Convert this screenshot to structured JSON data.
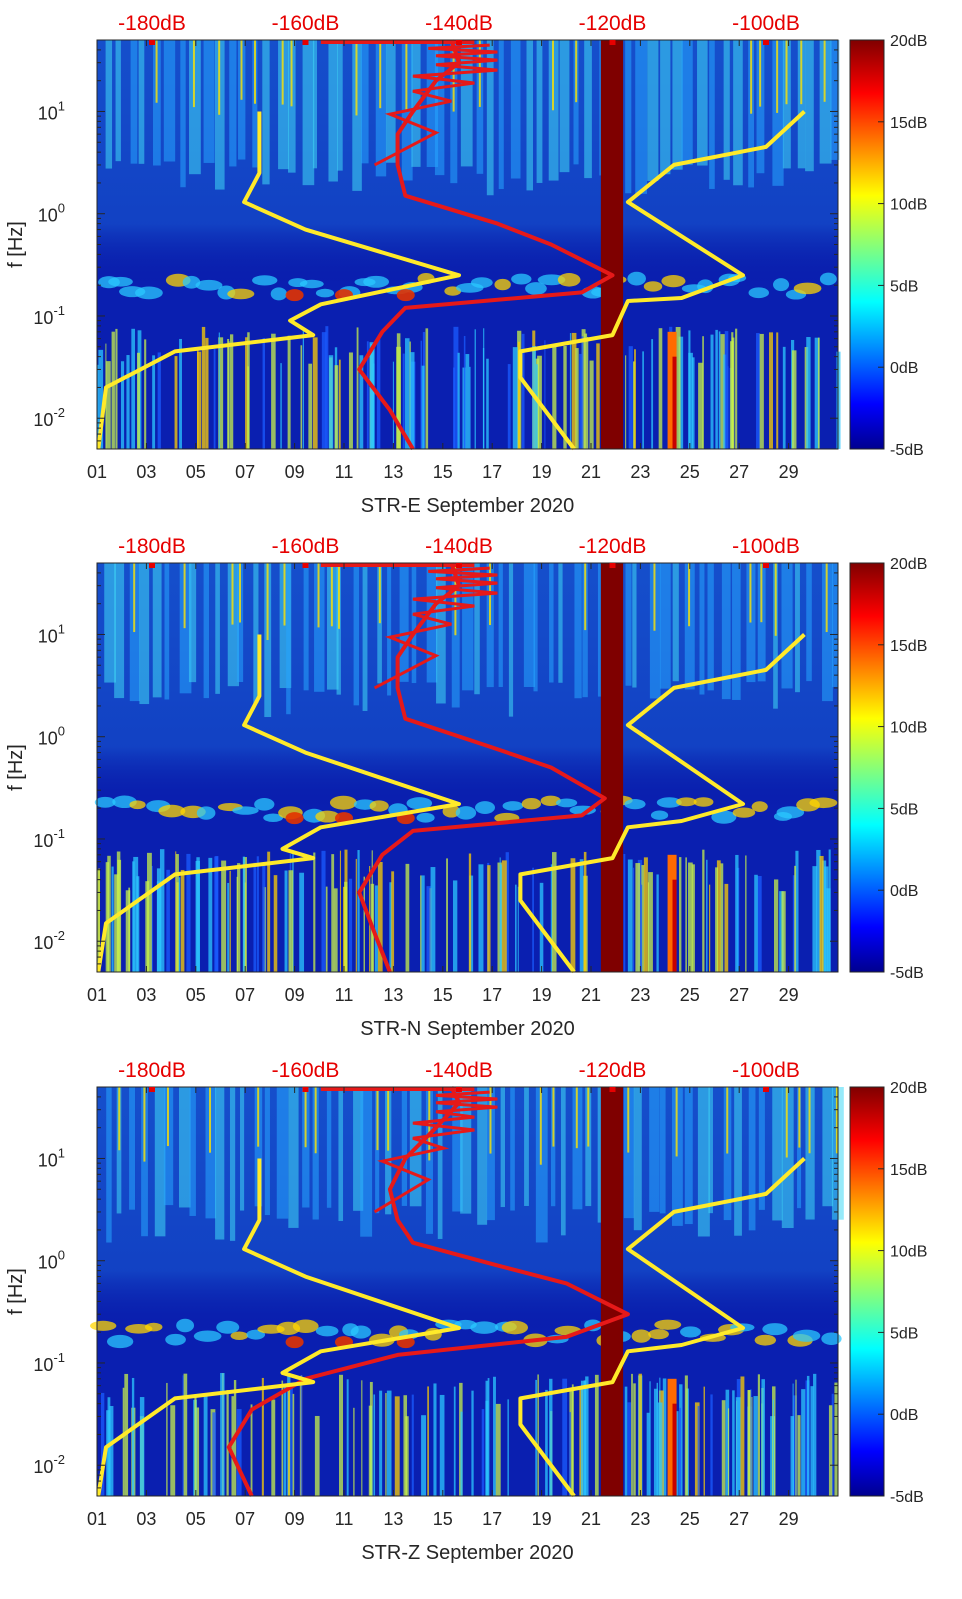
{
  "colors": {
    "axis": "#262626",
    "top_labels": "#e60000",
    "noise_curve": "#e61919",
    "model_curve": "#ffea2a",
    "block": "#7f0000"
  },
  "chart_data": [
    {
      "type": "heatmap",
      "title": "",
      "xlabel": "STR-E September 2020",
      "ylabel": "f [Hz]",
      "x_ticks": [
        "01",
        "03",
        "05",
        "07",
        "09",
        "11",
        "13",
        "15",
        "17",
        "19",
        "21",
        "23",
        "25",
        "27",
        "29"
      ],
      "x_days": [
        1,
        3,
        5,
        7,
        9,
        11,
        13,
        15,
        17,
        19,
        21,
        23,
        25,
        27,
        29
      ],
      "xlim": [
        1,
        31
      ],
      "yscale": "log",
      "ylim": [
        0.005,
        50
      ],
      "y_ticks": [
        {
          "base": "10",
          "exp": "-2",
          "value": 0.01
        },
        {
          "base": "10",
          "exp": "-1",
          "value": 0.1
        },
        {
          "base": "10",
          "exp": "0",
          "value": 1
        },
        {
          "base": "10",
          "exp": "1",
          "value": 10
        }
      ],
      "top_axis_labels": [
        "-180dB",
        "-160dB",
        "-140dB",
        "-120dB",
        "-100dB"
      ],
      "top_axis_values": [
        -180,
        -160,
        -140,
        -120,
        -100
      ],
      "colorbar_labels": [
        "20dB",
        "15dB",
        "10dB",
        "5dB",
        "0dB",
        "-5dB"
      ],
      "colorbar_range": [
        -5,
        20
      ],
      "highlight_band_days": [
        21.4,
        22.3
      ],
      "series": [
        {
          "name": "noise level (top axis)",
          "color": "red",
          "points": [
            [
              -141,
              50
            ],
            [
              -140,
              30
            ],
            [
              -143,
              20
            ],
            [
              -146,
              10
            ],
            [
              -148,
              6
            ],
            [
              -148,
              3
            ],
            [
              -147,
              1.5
            ],
            [
              -135,
              0.8
            ],
            [
              -128,
              0.5
            ],
            [
              -120,
              0.25
            ],
            [
              -124,
              0.17
            ],
            [
              -147,
              0.12
            ],
            [
              -150,
              0.07
            ],
            [
              -153,
              0.03
            ],
            [
              -149,
              0.012
            ],
            [
              -146,
              0.005
            ]
          ]
        },
        {
          "name": "model (top axis)",
          "color": "yellow",
          "points": [
            [
              -166,
              10
            ],
            [
              -166,
              2.5
            ],
            [
              -168,
              1.3
            ],
            [
              -160,
              0.7
            ],
            [
              -140,
              0.25
            ],
            [
              -158,
              0.13
            ],
            [
              -162,
              0.09
            ],
            [
              -159,
              0.065
            ],
            [
              -177,
              0.045
            ],
            [
              -186,
              0.02
            ],
            [
              -187,
              0.005
            ]
          ]
        },
        {
          "name": "model high (top axis)",
          "color": "yellow",
          "points": [
            [
              -95,
              10
            ],
            [
              -100,
              4.5
            ],
            [
              -112,
              3
            ],
            [
              -118,
              1.3
            ],
            [
              -103,
              0.25
            ],
            [
              -111,
              0.15
            ],
            [
              -118,
              0.14
            ],
            [
              -120,
              0.065
            ],
            [
              -132,
              0.045
            ],
            [
              -132,
              0.025
            ],
            [
              -125,
              0.005
            ]
          ]
        }
      ]
    },
    {
      "type": "heatmap",
      "title": "",
      "xlabel": "STR-N September 2020",
      "ylabel": "f [Hz]",
      "x_ticks": [
        "01",
        "03",
        "05",
        "07",
        "09",
        "11",
        "13",
        "15",
        "17",
        "19",
        "21",
        "23",
        "25",
        "27",
        "29"
      ],
      "x_days": [
        1,
        3,
        5,
        7,
        9,
        11,
        13,
        15,
        17,
        19,
        21,
        23,
        25,
        27,
        29
      ],
      "xlim": [
        1,
        31
      ],
      "yscale": "log",
      "ylim": [
        0.005,
        50
      ],
      "y_ticks": [
        {
          "base": "10",
          "exp": "-2",
          "value": 0.01
        },
        {
          "base": "10",
          "exp": "-1",
          "value": 0.1
        },
        {
          "base": "10",
          "exp": "0",
          "value": 1
        },
        {
          "base": "10",
          "exp": "1",
          "value": 10
        }
      ],
      "top_axis_labels": [
        "-180dB",
        "-160dB",
        "-140dB",
        "-120dB",
        "-100dB"
      ],
      "top_axis_values": [
        -180,
        -160,
        -140,
        -120,
        -100
      ],
      "colorbar_labels": [
        "20dB",
        "15dB",
        "10dB",
        "5dB",
        "0dB",
        "-5dB"
      ],
      "colorbar_range": [
        -5,
        20
      ],
      "highlight_band_days": [
        21.4,
        22.3
      ],
      "series": [
        {
          "name": "noise level (top axis)",
          "color": "red",
          "points": [
            [
              -141,
              50
            ],
            [
              -140,
              30
            ],
            [
              -143,
              20
            ],
            [
              -146,
              10
            ],
            [
              -148,
              6
            ],
            [
              -148,
              3
            ],
            [
              -147,
              1.5
            ],
            [
              -136,
              0.8
            ],
            [
              -128,
              0.5
            ],
            [
              -121,
              0.25
            ],
            [
              -124,
              0.17
            ],
            [
              -146,
              0.12
            ],
            [
              -150,
              0.07
            ],
            [
              -153,
              0.03
            ],
            [
              -151,
              0.012
            ],
            [
              -149,
              0.005
            ]
          ]
        },
        {
          "name": "model (top axis)",
          "color": "yellow",
          "points": [
            [
              -166,
              10
            ],
            [
              -166,
              2.5
            ],
            [
              -168,
              1.3
            ],
            [
              -160,
              0.7
            ],
            [
              -140,
              0.22
            ],
            [
              -158,
              0.13
            ],
            [
              -163,
              0.08
            ],
            [
              -159,
              0.065
            ],
            [
              -177,
              0.045
            ],
            [
              -186,
              0.015
            ],
            [
              -187,
              0.005
            ]
          ]
        },
        {
          "name": "model high (top axis)",
          "color": "yellow",
          "points": [
            [
              -95,
              10
            ],
            [
              -100,
              4.5
            ],
            [
              -112,
              3
            ],
            [
              -118,
              1.3
            ],
            [
              -103,
              0.22
            ],
            [
              -111,
              0.15
            ],
            [
              -118,
              0.13
            ],
            [
              -120,
              0.065
            ],
            [
              -132,
              0.045
            ],
            [
              -132,
              0.025
            ],
            [
              -125,
              0.005
            ]
          ]
        }
      ]
    },
    {
      "type": "heatmap",
      "title": "",
      "xlabel": "STR-Z September 2020",
      "ylabel": "f [Hz]",
      "x_ticks": [
        "01",
        "03",
        "05",
        "07",
        "09",
        "11",
        "13",
        "15",
        "17",
        "19",
        "21",
        "23",
        "25",
        "27",
        "29"
      ],
      "x_days": [
        1,
        3,
        5,
        7,
        9,
        11,
        13,
        15,
        17,
        19,
        21,
        23,
        25,
        27,
        29
      ],
      "xlim": [
        1,
        31
      ],
      "yscale": "log",
      "ylim": [
        0.005,
        50
      ],
      "y_ticks": [
        {
          "base": "10",
          "exp": "-2",
          "value": 0.01
        },
        {
          "base": "10",
          "exp": "-1",
          "value": 0.1
        },
        {
          "base": "10",
          "exp": "0",
          "value": 1
        },
        {
          "base": "10",
          "exp": "1",
          "value": 10
        }
      ],
      "top_axis_labels": [
        "-180dB",
        "-160dB",
        "-140dB",
        "-120dB",
        "-100dB"
      ],
      "top_axis_values": [
        -180,
        -160,
        -140,
        -120,
        -100
      ],
      "colorbar_labels": [
        "20dB",
        "15dB",
        "10dB",
        "5dB",
        "0dB",
        "-5dB"
      ],
      "colorbar_range": [
        -5,
        20
      ],
      "highlight_band_days": [
        21.4,
        22.3
      ],
      "series": [
        {
          "name": "noise level (top axis)",
          "color": "red",
          "points": [
            [
              -141,
              50
            ],
            [
              -140,
              35
            ],
            [
              -143,
              20
            ],
            [
              -147,
              10
            ],
            [
              -149,
              5
            ],
            [
              -148,
              2.5
            ],
            [
              -146,
              1.5
            ],
            [
              -135,
              0.9
            ],
            [
              -126,
              0.6
            ],
            [
              -118,
              0.3
            ],
            [
              -126,
              0.18
            ],
            [
              -148,
              0.12
            ],
            [
              -160,
              0.07
            ],
            [
              -167,
              0.035
            ],
            [
              -170,
              0.015
            ],
            [
              -167,
              0.005
            ]
          ]
        },
        {
          "name": "model (top axis)",
          "color": "yellow",
          "points": [
            [
              -166,
              10
            ],
            [
              -166,
              2.5
            ],
            [
              -168,
              1.3
            ],
            [
              -160,
              0.7
            ],
            [
              -140,
              0.22
            ],
            [
              -158,
              0.13
            ],
            [
              -163,
              0.08
            ],
            [
              -159,
              0.065
            ],
            [
              -177,
              0.045
            ],
            [
              -186,
              0.015
            ],
            [
              -187,
              0.005
            ]
          ]
        },
        {
          "name": "model high (top axis)",
          "color": "yellow",
          "points": [
            [
              -95,
              10
            ],
            [
              -100,
              4.5
            ],
            [
              -112,
              3
            ],
            [
              -118,
              1.3
            ],
            [
              -103,
              0.22
            ],
            [
              -111,
              0.15
            ],
            [
              -118,
              0.13
            ],
            [
              -120,
              0.065
            ],
            [
              -132,
              0.045
            ],
            [
              -132,
              0.025
            ],
            [
              -125,
              0.005
            ]
          ]
        }
      ]
    }
  ]
}
